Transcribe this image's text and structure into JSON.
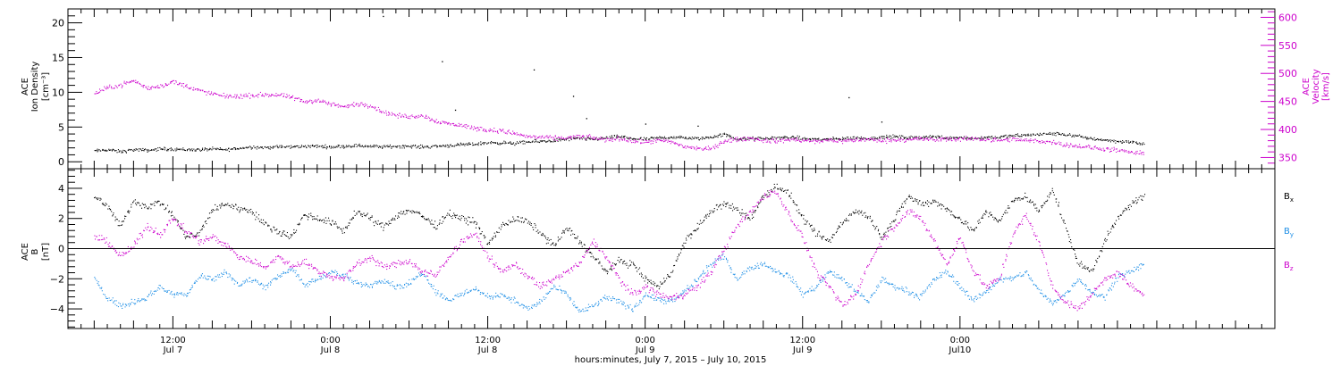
{
  "colors": {
    "black": "#000000",
    "magenta": "#cc00cc",
    "blue": "#1f8fe6",
    "axis": "#000000"
  },
  "chart_data": [
    {
      "type": "scatter",
      "panel": "top",
      "ylabel_left": [
        "ACE",
        "Ion Density",
        "[cm⁻³]"
      ],
      "ylabel_right": [
        "ACE",
        "Velocity",
        "[km/s]"
      ],
      "ylim_left": [
        -1,
        22
      ],
      "ylim_right": [
        330,
        615
      ],
      "yticks_left": [
        0,
        5,
        10,
        15,
        20
      ],
      "yticks_right": [
        350,
        400,
        450,
        500,
        550,
        600
      ],
      "ytick_labels_left": [
        "0",
        "5",
        "10",
        "15",
        "20"
      ],
      "ytick_labels_right": [
        "350",
        "400",
        "450",
        "500",
        "550",
        "600"
      ],
      "series": [
        {
          "axis": "left",
          "color": "black",
          "x": [
            0,
            2,
            4,
            6,
            8,
            10,
            12,
            14,
            16,
            18,
            20,
            22,
            24,
            26,
            28,
            30,
            32,
            34,
            36,
            38,
            40,
            42,
            44,
            46,
            48,
            50,
            52,
            54,
            56,
            58,
            60,
            62,
            64,
            66,
            68,
            70,
            72,
            74,
            76,
            78,
            80,
            82,
            84,
            86,
            88,
            90,
            92,
            94,
            96,
            98,
            100,
            102,
            104,
            106,
            108,
            110,
            112,
            114,
            116,
            118,
            120,
            122,
            124,
            126,
            128,
            130,
            132,
            134,
            136,
            138,
            140,
            142,
            144,
            146,
            148,
            150,
            152,
            154,
            156,
            158,
            160
          ],
          "y": [
            1.6,
            1.8,
            1.5,
            1.8,
            1.7,
            1.9,
            1.9,
            1.8,
            1.8,
            1.9,
            1.8,
            2.0,
            2.2,
            2.1,
            2.2,
            2.2,
            2.3,
            2.3,
            2.2,
            2.3,
            2.4,
            2.3,
            2.2,
            2.3,
            2.3,
            2.2,
            2.3,
            2.4,
            2.5,
            2.6,
            2.8,
            2.8,
            2.7,
            2.9,
            3.0,
            3.1,
            3.3,
            3.4,
            3.3,
            3.5,
            3.7,
            3.4,
            3.3,
            3.5,
            3.6,
            3.5,
            3.4,
            3.6,
            4.0,
            3.3,
            3.4,
            3.4,
            3.5,
            3.6,
            3.4,
            3.3,
            3.3,
            3.4,
            3.5,
            3.4,
            3.6,
            3.7,
            3.5,
            3.6,
            3.7,
            3.5,
            3.6,
            3.4,
            3.6,
            3.6,
            3.8,
            3.9,
            4.0,
            4.1,
            4.0,
            3.7,
            3.4,
            3.2,
            3.0,
            2.9,
            2.6
          ],
          "points": [
            [
              44,
              21
            ],
            [
              53,
              14.5
            ],
            [
              67,
              13.3
            ],
            [
              55,
              7.5
            ],
            [
              75,
              6.3
            ],
            [
              73,
              9.5
            ],
            [
              115,
              9.3
            ],
            [
              84,
              5.5
            ],
            [
              92,
              5.2
            ],
            [
              120,
              5.8
            ]
          ]
        },
        {
          "axis": "right",
          "color": "magenta",
          "x": [
            0,
            2,
            4,
            6,
            8,
            10,
            12,
            14,
            16,
            18,
            20,
            22,
            24,
            26,
            28,
            30,
            32,
            34,
            36,
            38,
            40,
            42,
            44,
            46,
            48,
            50,
            52,
            54,
            56,
            58,
            60,
            62,
            64,
            66,
            68,
            70,
            72,
            74,
            76,
            78,
            80,
            82,
            84,
            86,
            88,
            90,
            92,
            94,
            96,
            98,
            100,
            102,
            104,
            106,
            108,
            110,
            112,
            114,
            116,
            118,
            120,
            122,
            124,
            126,
            128,
            130,
            132,
            134,
            136,
            138,
            140,
            142,
            144,
            146,
            148,
            150,
            152,
            154,
            156,
            158,
            160
          ],
          "y": [
            465,
            475,
            480,
            488,
            474,
            478,
            486,
            478,
            470,
            464,
            460,
            460,
            461,
            463,
            462,
            458,
            450,
            453,
            446,
            441,
            446,
            444,
            432,
            426,
            423,
            426,
            416,
            411,
            408,
            403,
            400,
            398,
            394,
            388,
            387,
            385,
            386,
            388,
            386,
            382,
            385,
            380,
            378,
            381,
            378,
            370,
            367,
            366,
            380,
            383,
            385,
            381,
            380,
            383,
            381,
            379,
            382,
            380,
            382,
            383,
            381,
            382,
            383,
            384,
            382,
            384,
            383,
            385,
            383,
            381,
            383,
            381,
            380,
            378,
            374,
            371,
            368,
            366,
            363,
            360,
            357
          ]
        }
      ]
    },
    {
      "type": "scatter",
      "panel": "bottom",
      "ylabel_left": [
        "ACE",
        "B",
        "[nT]"
      ],
      "ylim": [
        -5.3,
        5.3
      ],
      "yticks": [
        -4,
        -2,
        0,
        2,
        4
      ],
      "ytick_labels": [
        "−4",
        "−2",
        "0",
        "2",
        "4"
      ],
      "zero_line": true,
      "legend_placement": "right",
      "series": [
        {
          "name_base": "B",
          "name_sub": "x",
          "color": "black",
          "x": [
            0,
            2,
            4,
            6,
            8,
            10,
            12,
            14,
            16,
            18,
            20,
            22,
            24,
            26,
            28,
            30,
            32,
            34,
            36,
            38,
            40,
            42,
            44,
            46,
            48,
            50,
            52,
            54,
            56,
            58,
            60,
            62,
            64,
            66,
            68,
            70,
            72,
            74,
            76,
            78,
            80,
            82,
            84,
            86,
            88,
            90,
            92,
            94,
            96,
            98,
            100,
            102,
            104,
            106,
            108,
            110,
            112,
            114,
            116,
            118,
            120,
            122,
            124,
            126,
            128,
            130,
            132,
            134,
            136,
            138,
            140,
            142,
            144,
            146,
            148,
            150,
            152,
            154,
            156,
            158,
            160
          ],
          "y": [
            3.6,
            2.8,
            1.5,
            3.2,
            2.8,
            3.1,
            2.2,
            0.8,
            1.0,
            2.6,
            3.0,
            2.7,
            2.5,
            1.6,
            1.2,
            0.8,
            2.3,
            2.0,
            1.8,
            1.2,
            2.5,
            2.0,
            1.5,
            2.2,
            2.6,
            2.2,
            1.5,
            2.4,
            2.0,
            1.8,
            0.3,
            1.5,
            2.0,
            1.8,
            1.1,
            0.2,
            1.4,
            0.5,
            -0.5,
            -1.5,
            -0.8,
            -1.0,
            -2.0,
            -2.5,
            -1.5,
            0.5,
            1.5,
            2.5,
            3.0,
            2.6,
            2.0,
            3.5,
            4.2,
            3.6,
            2.0,
            1.0,
            0.5,
            1.8,
            2.5,
            2.2,
            0.8,
            2.0,
            3.5,
            3.0,
            3.2,
            2.6,
            2.0,
            1.2,
            2.5,
            1.8,
            3.2,
            3.5,
            2.5,
            4.0,
            1.5,
            -1.0,
            -1.5,
            0.5,
            2.0,
            3.0,
            3.5
          ]
        },
        {
          "name_base": "B",
          "name_sub": "y",
          "color": "blue",
          "x": [
            0,
            2,
            4,
            6,
            8,
            10,
            12,
            14,
            16,
            18,
            20,
            22,
            24,
            26,
            28,
            30,
            32,
            34,
            36,
            38,
            40,
            42,
            44,
            46,
            48,
            50,
            52,
            54,
            56,
            58,
            60,
            62,
            64,
            66,
            68,
            70,
            72,
            74,
            76,
            78,
            80,
            82,
            84,
            86,
            88,
            90,
            92,
            94,
            96,
            98,
            100,
            102,
            104,
            106,
            108,
            110,
            112,
            114,
            116,
            118,
            120,
            122,
            124,
            126,
            128,
            130,
            132,
            134,
            136,
            138,
            140,
            142,
            144,
            146,
            148,
            150,
            152,
            154,
            156,
            158,
            160
          ],
          "y": [
            -2.0,
            -3.2,
            -3.8,
            -3.5,
            -3.2,
            -2.5,
            -3.0,
            -3.0,
            -1.8,
            -2.0,
            -1.5,
            -2.4,
            -2.0,
            -2.5,
            -1.8,
            -1.3,
            -2.4,
            -2.0,
            -1.5,
            -1.8,
            -2.3,
            -2.4,
            -2.0,
            -2.5,
            -2.3,
            -1.5,
            -2.8,
            -3.4,
            -3.0,
            -2.6,
            -3.2,
            -3.0,
            -3.4,
            -4.0,
            -3.5,
            -2.5,
            -3.0,
            -4.2,
            -3.8,
            -3.2,
            -3.5,
            -4.0,
            -3.0,
            -3.4,
            -3.5,
            -2.8,
            -2.0,
            -1.0,
            -0.5,
            -2.0,
            -1.2,
            -1.0,
            -1.5,
            -1.8,
            -3.0,
            -2.5,
            -1.5,
            -2.0,
            -2.8,
            -3.5,
            -2.0,
            -2.5,
            -2.8,
            -3.2,
            -2.0,
            -1.5,
            -2.5,
            -3.4,
            -2.8,
            -2.0,
            -2.0,
            -1.5,
            -2.8,
            -3.6,
            -3.0,
            -2.0,
            -2.8,
            -3.2,
            -1.8,
            -1.5,
            -1.0
          ]
        },
        {
          "name_base": "B",
          "name_sub": "z",
          "color": "magenta",
          "x": [
            0,
            2,
            4,
            6,
            8,
            10,
            12,
            14,
            16,
            18,
            20,
            22,
            24,
            26,
            28,
            30,
            32,
            34,
            36,
            38,
            40,
            42,
            44,
            46,
            48,
            50,
            52,
            54,
            56,
            58,
            60,
            62,
            64,
            66,
            68,
            70,
            72,
            74,
            76,
            78,
            80,
            82,
            84,
            86,
            88,
            90,
            92,
            94,
            96,
            98,
            100,
            102,
            104,
            106,
            108,
            110,
            112,
            114,
            116,
            118,
            120,
            122,
            124,
            126,
            128,
            130,
            132,
            134,
            136,
            138,
            140,
            142,
            144,
            146,
            148,
            150,
            152,
            154,
            156,
            158,
            160
          ],
          "y": [
            0.8,
            0.5,
            -0.5,
            0.2,
            1.5,
            1.0,
            2.0,
            1.2,
            0.5,
            0.8,
            0.3,
            -0.5,
            -0.8,
            -1.2,
            -0.5,
            -1.2,
            -0.8,
            -1.5,
            -1.8,
            -2.0,
            -1.0,
            -0.5,
            -1.2,
            -1.0,
            -0.8,
            -1.5,
            -1.8,
            -0.5,
            0.5,
            1.0,
            -0.5,
            -1.5,
            -1.0,
            -1.8,
            -2.5,
            -2.0,
            -1.5,
            -1.0,
            0.5,
            -0.5,
            -2.0,
            -3.0,
            -2.5,
            -3.0,
            -3.2,
            -3.0,
            -2.5,
            -1.5,
            0.0,
            1.5,
            2.5,
            3.5,
            3.8,
            2.2,
            0.8,
            -1.5,
            -2.5,
            -3.8,
            -3.0,
            -1.0,
            0.5,
            1.5,
            2.5,
            2.0,
            0.5,
            -1.0,
            0.8,
            -1.5,
            -2.5,
            -2.0,
            1.0,
            2.2,
            0.5,
            -2.5,
            -3.5,
            -4.0,
            -3.0,
            -2.0,
            -1.5,
            -2.5,
            -3.0
          ]
        }
      ]
    }
  ],
  "x_axis": {
    "xlim": [
      -4,
      180
    ],
    "major_ticks": [
      {
        "x": 12,
        "time": "12:00",
        "date": "Jul 7"
      },
      {
        "x": 36,
        "time": "0:00",
        "date": "Jul 8"
      },
      {
        "x": 60,
        "time": "12:00",
        "date": "Jul 8"
      },
      {
        "x": 84,
        "time": "0:00",
        "date": "Jul 9"
      },
      {
        "x": 108,
        "time": "12:00",
        "date": "Jul 9"
      },
      {
        "x": 132,
        "time": "0:00",
        "date": "Jul10"
      }
    ],
    "xlabel": "hours:minutes, July  7, 2015 – July 10, 2015"
  }
}
